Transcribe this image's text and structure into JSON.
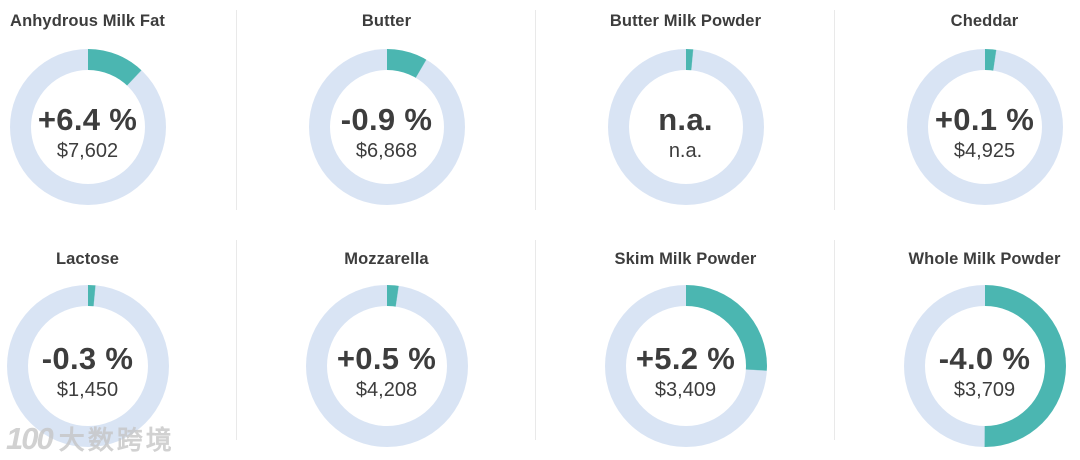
{
  "colors": {
    "accent_teal": "#4bb6b1",
    "ring_blue": "#d9e4f4",
    "text_dark": "#3d3d3d",
    "separator": "#e9e9e9",
    "watermark_gray": "#c6c6c6"
  },
  "products": [
    {
      "title": "Anhydrous Milk Fat",
      "change": "+6.4 %",
      "price": "$7,602",
      "arc_deg": 43
    },
    {
      "title": "Butter",
      "change": "-0.9 %",
      "price": "$6,868",
      "arc_deg": 30
    },
    {
      "title": "Butter Milk Powder",
      "change": "n.a.",
      "price": "n.a.",
      "arc_deg": 5
    },
    {
      "title": "Cheddar",
      "change": "+0.1 %",
      "price": "$4,925",
      "arc_deg": 8
    },
    {
      "title": "Lactose",
      "change": "-0.3 %",
      "price": "$1,450",
      "arc_deg": 5
    },
    {
      "title": "Mozzarella",
      "change": "+0.5 %",
      "price": "$4,208",
      "arc_deg": 8
    },
    {
      "title": "Skim Milk Powder",
      "change": "+5.2 %",
      "price": "$3,409",
      "arc_deg": 93
    },
    {
      "title": "Whole Milk Powder",
      "change": "-4.0 %",
      "price": "$3,709",
      "arc_deg": 180
    }
  ],
  "watermark": {
    "logo_text": "100",
    "brand_text": "大数跨境"
  },
  "chart_data": [
    {
      "type": "pie",
      "title": "Anhydrous Milk Fat",
      "center_label": "+6.4 %",
      "sub_label": "$7,602",
      "slices": [
        {
          "name": "highlight-arc",
          "value_deg": 43,
          "color": "#4bb6b1"
        },
        {
          "name": "remainder",
          "value_deg": 317,
          "color": "#d9e4f4"
        }
      ]
    },
    {
      "type": "pie",
      "title": "Butter",
      "center_label": "-0.9 %",
      "sub_label": "$6,868",
      "slices": [
        {
          "name": "highlight-arc",
          "value_deg": 30,
          "color": "#4bb6b1"
        },
        {
          "name": "remainder",
          "value_deg": 330,
          "color": "#d9e4f4"
        }
      ]
    },
    {
      "type": "pie",
      "title": "Butter Milk Powder",
      "center_label": "n.a.",
      "sub_label": "n.a.",
      "slices": [
        {
          "name": "highlight-arc",
          "value_deg": 5,
          "color": "#4bb6b1"
        },
        {
          "name": "remainder",
          "value_deg": 355,
          "color": "#d9e4f4"
        }
      ]
    },
    {
      "type": "pie",
      "title": "Cheddar",
      "center_label": "+0.1 %",
      "sub_label": "$4,925",
      "slices": [
        {
          "name": "highlight-arc",
          "value_deg": 8,
          "color": "#4bb6b1"
        },
        {
          "name": "remainder",
          "value_deg": 352,
          "color": "#d9e4f4"
        }
      ]
    },
    {
      "type": "pie",
      "title": "Lactose",
      "center_label": "-0.3 %",
      "sub_label": "$1,450",
      "slices": [
        {
          "name": "highlight-arc",
          "value_deg": 5,
          "color": "#4bb6b1"
        },
        {
          "name": "remainder",
          "value_deg": 355,
          "color": "#d9e4f4"
        }
      ]
    },
    {
      "type": "pie",
      "title": "Mozzarella",
      "center_label": "+0.5 %",
      "sub_label": "$4,208",
      "slices": [
        {
          "name": "highlight-arc",
          "value_deg": 8,
          "color": "#4bb6b1"
        },
        {
          "name": "remainder",
          "value_deg": 352,
          "color": "#d9e4f4"
        }
      ]
    },
    {
      "type": "pie",
      "title": "Skim Milk Powder",
      "center_label": "+5.2 %",
      "sub_label": "$3,409",
      "slices": [
        {
          "name": "highlight-arc",
          "value_deg": 93,
          "color": "#4bb6b1"
        },
        {
          "name": "remainder",
          "value_deg": 267,
          "color": "#d9e4f4"
        }
      ]
    },
    {
      "type": "pie",
      "title": "Whole Milk Powder",
      "center_label": "-4.0 %",
      "sub_label": "$3,709",
      "slices": [
        {
          "name": "highlight-arc",
          "value_deg": 180,
          "color": "#4bb6b1"
        },
        {
          "name": "remainder",
          "value_deg": 180,
          "color": "#d9e4f4"
        }
      ]
    }
  ]
}
